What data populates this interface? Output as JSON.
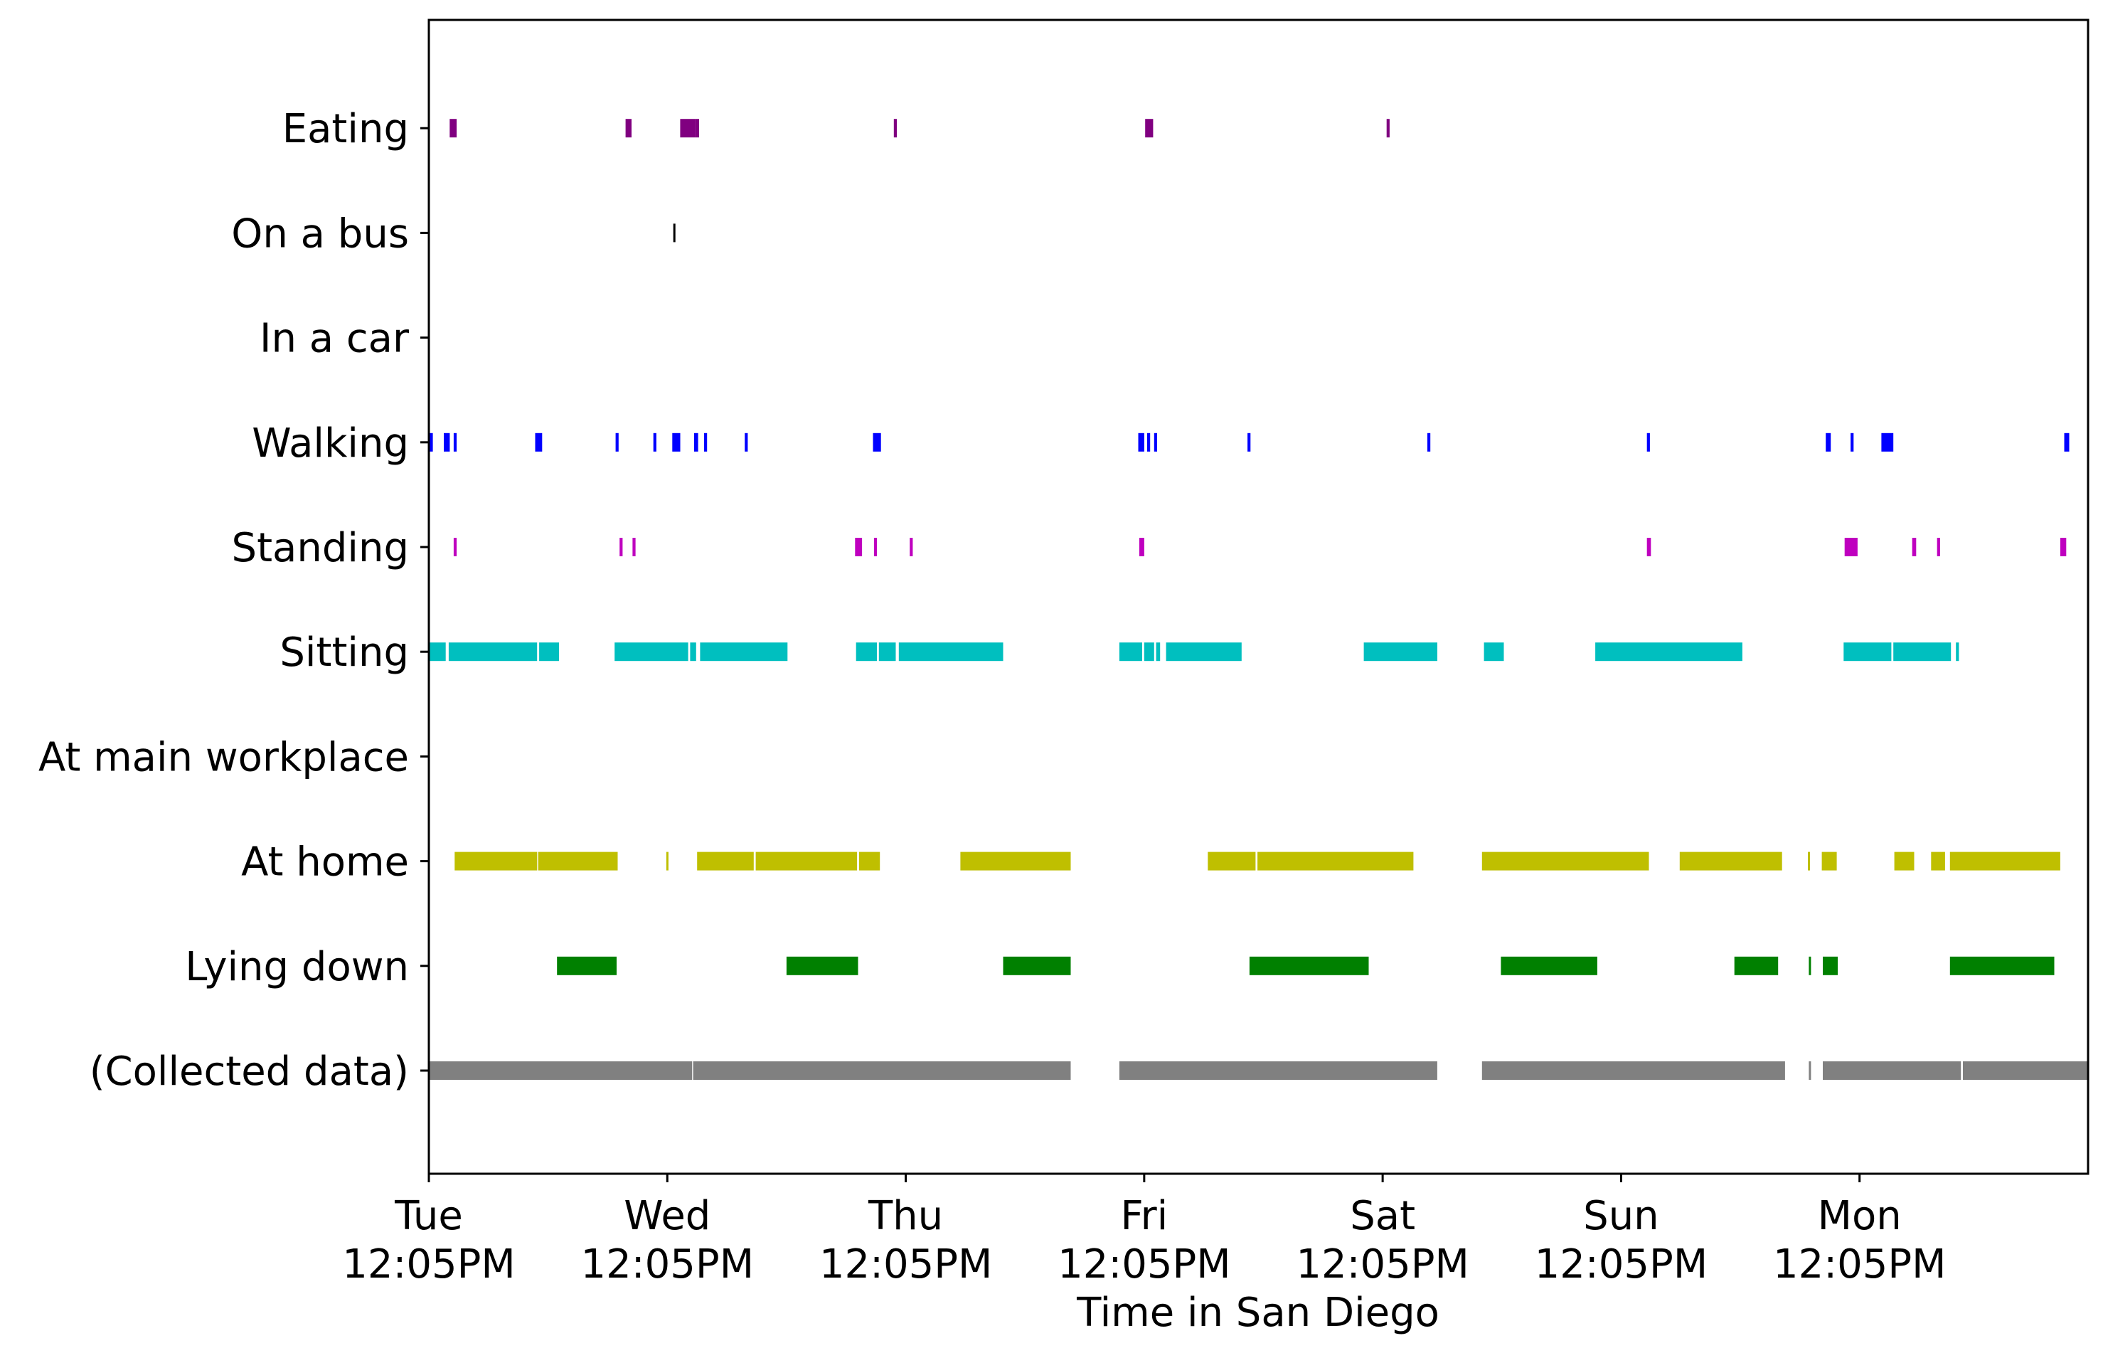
{
  "chart_data": {
    "type": "timeline",
    "xlabel": "Time in San Diego",
    "x_unit": "hours after Tue 12:05PM",
    "xlim": [
      0,
      167
    ],
    "categories": [
      "(Collected data)",
      "Lying down",
      "At home",
      "At main workplace",
      "Sitting",
      "Standing",
      "Walking",
      "In a car",
      "On a bus",
      "Eating"
    ],
    "x_ticks": [
      {
        "hours": 0,
        "day": "Tue",
        "time": "12:05PM"
      },
      {
        "hours": 24,
        "day": "Wed",
        "time": "12:05PM"
      },
      {
        "hours": 48,
        "day": "Thu",
        "time": "12:05PM"
      },
      {
        "hours": 72,
        "day": "Fri",
        "time": "12:05PM"
      },
      {
        "hours": 96,
        "day": "Sat",
        "time": "12:05PM"
      },
      {
        "hours": 120,
        "day": "Sun",
        "time": "12:05PM"
      },
      {
        "hours": 144,
        "day": "Mon",
        "time": "12:05PM"
      }
    ],
    "series": [
      {
        "label": "(Collected data)",
        "color": "#808080",
        "intervals": [
          [
            0,
            26.5
          ],
          [
            26.6,
            64.6
          ],
          [
            69.5,
            101.5
          ],
          [
            106,
            136.5
          ],
          [
            138.9,
            139.1
          ],
          [
            140.3,
            154.2
          ],
          [
            154.4,
            167
          ]
        ]
      },
      {
        "label": "Lying down",
        "color": "#008000",
        "intervals": [
          [
            12.9,
            18.9
          ],
          [
            36,
            43.2
          ],
          [
            57.8,
            64.6
          ],
          [
            82.6,
            94.6
          ],
          [
            107.9,
            117.6
          ],
          [
            131.4,
            135.8
          ],
          [
            138.9,
            139.1
          ],
          [
            140.3,
            141.8
          ],
          [
            153.1,
            163.6
          ]
        ]
      },
      {
        "label": "At home",
        "color": "#BFBF00",
        "intervals": [
          [
            2.6,
            10.9
          ],
          [
            11,
            19
          ],
          [
            23.9,
            24.1
          ],
          [
            27,
            32.7
          ],
          [
            32.9,
            43.1
          ],
          [
            43.3,
            45.4
          ],
          [
            53.5,
            64.6
          ],
          [
            78.4,
            83.2
          ],
          [
            83.4,
            99.1
          ],
          [
            106,
            122.8
          ],
          [
            125.9,
            136.2
          ],
          [
            138.8,
            139
          ],
          [
            140.2,
            141.7
          ],
          [
            147.5,
            149.5
          ],
          [
            151.2,
            152.6
          ],
          [
            153.1,
            164.2
          ]
        ]
      },
      {
        "label": "At main workplace",
        "color": "#0000FF",
        "intervals": []
      },
      {
        "label": "Sitting",
        "color": "#00BFBF",
        "intervals": [
          [
            0,
            1.7
          ],
          [
            2,
            10.9
          ],
          [
            11.1,
            13.1
          ],
          [
            18.7,
            26.1
          ],
          [
            26.3,
            26.9
          ],
          [
            27.3,
            36.1
          ],
          [
            43,
            45.1
          ],
          [
            45.3,
            47
          ],
          [
            47.3,
            57.8
          ],
          [
            69.5,
            71.8
          ],
          [
            72,
            73
          ],
          [
            73.2,
            73.6
          ],
          [
            74.2,
            81.8
          ],
          [
            94.1,
            101.5
          ],
          [
            106.2,
            108.2
          ],
          [
            117.4,
            132.2
          ],
          [
            142.4,
            147.2
          ],
          [
            147.4,
            153.2
          ],
          [
            153.7,
            154
          ]
        ]
      },
      {
        "label": "Standing",
        "color": "#BF00BF",
        "intervals": [
          [
            2.5,
            2.8
          ],
          [
            19.2,
            19.5
          ],
          [
            20.5,
            20.8
          ],
          [
            42.9,
            43.6
          ],
          [
            44.8,
            45.1
          ],
          [
            48.4,
            48.7
          ],
          [
            71.5,
            72
          ],
          [
            122.6,
            123
          ],
          [
            142.5,
            143.8
          ],
          [
            149.3,
            149.7
          ],
          [
            151.8,
            152.1
          ],
          [
            164.2,
            164.8
          ]
        ]
      },
      {
        "label": "Walking",
        "color": "#0000FF",
        "intervals": [
          [
            0.1,
            0.4
          ],
          [
            1.5,
            2.1
          ],
          [
            2.5,
            2.8
          ],
          [
            10.7,
            11.4
          ],
          [
            18.8,
            19.1
          ],
          [
            22.6,
            22.9
          ],
          [
            24.5,
            25.3
          ],
          [
            26.7,
            27.1
          ],
          [
            27.7,
            28
          ],
          [
            31.8,
            32.1
          ],
          [
            44.7,
            45.5
          ],
          [
            71.4,
            72
          ],
          [
            72.3,
            72.6
          ],
          [
            73,
            73.3
          ],
          [
            82.4,
            82.7
          ],
          [
            100.5,
            100.8
          ],
          [
            122.6,
            122.9
          ],
          [
            140.6,
            141.1
          ],
          [
            143.1,
            143.4
          ],
          [
            146.2,
            147.4
          ],
          [
            164.6,
            165.1
          ]
        ]
      },
      {
        "label": "In a car",
        "color": "#000000",
        "intervals": []
      },
      {
        "label": "On a bus",
        "color": "#000000",
        "intervals": [
          [
            24.6,
            24.8
          ]
        ]
      },
      {
        "label": "Eating",
        "color": "#800080",
        "intervals": [
          [
            2.1,
            2.8
          ],
          [
            19.8,
            20.4
          ],
          [
            25.3,
            26.8
          ],
          [
            26.8,
            27.2
          ],
          [
            46.8,
            47.1
          ],
          [
            72.1,
            72.9
          ],
          [
            96.4,
            96.7
          ]
        ]
      }
    ]
  }
}
